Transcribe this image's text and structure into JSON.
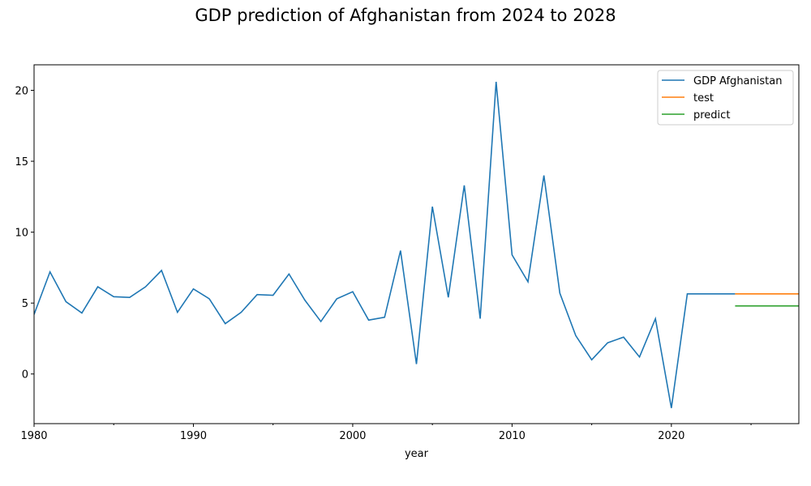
{
  "chart_data": {
    "type": "line",
    "title": "GDP prediction of Afghanistan from 2024 to 2028",
    "xlabel": "year",
    "ylabel": "",
    "xlim": [
      1980,
      2028
    ],
    "ylim": [
      -3.5,
      21.8
    ],
    "x_ticks": [
      "1980",
      "1990",
      "2000",
      "2010",
      "2020"
    ],
    "y_ticks": [
      "0",
      "5",
      "10",
      "15",
      "20"
    ],
    "legend_position": "top-right",
    "grid": false,
    "series": [
      {
        "name": "GDP Afghanistan",
        "color": "#1f77b4",
        "x": [
          1980,
          1981,
          1982,
          1983,
          1984,
          1985,
          1986,
          1987,
          1988,
          1989,
          1990,
          1991,
          1992,
          1993,
          1994,
          1995,
          1996,
          1997,
          1998,
          1999,
          2000,
          2001,
          2002,
          2003,
          2004,
          2005,
          2006,
          2007,
          2008,
          2009,
          2010,
          2011,
          2012,
          2013,
          2014,
          2015,
          2016,
          2017,
          2018,
          2019,
          2020,
          2021,
          2022,
          2023,
          2024
        ],
        "values": [
          4.2,
          7.2,
          5.1,
          4.3,
          6.15,
          5.45,
          5.4,
          6.15,
          7.3,
          4.35,
          6.0,
          5.3,
          3.55,
          4.35,
          5.6,
          5.55,
          7.05,
          5.2,
          3.7,
          5.3,
          5.8,
          3.8,
          4.0,
          8.7,
          0.7,
          11.8,
          5.4,
          13.3,
          3.9,
          20.6,
          8.4,
          6.5,
          14.0,
          5.7,
          2.7,
          1.0,
          2.2,
          2.6,
          1.2,
          3.9,
          -2.4,
          5.65,
          5.65,
          5.65,
          5.65
        ]
      },
      {
        "name": "test",
        "color": "#ff7f0e",
        "x": [
          2024,
          2025,
          2026,
          2027,
          2028
        ],
        "values": [
          5.65,
          5.65,
          5.65,
          5.65,
          5.65
        ]
      },
      {
        "name": "predict",
        "color": "#2ca02c",
        "x": [
          2024,
          2025,
          2026,
          2027,
          2028
        ],
        "values": [
          4.8,
          4.8,
          4.8,
          4.8,
          4.8
        ]
      }
    ]
  }
}
